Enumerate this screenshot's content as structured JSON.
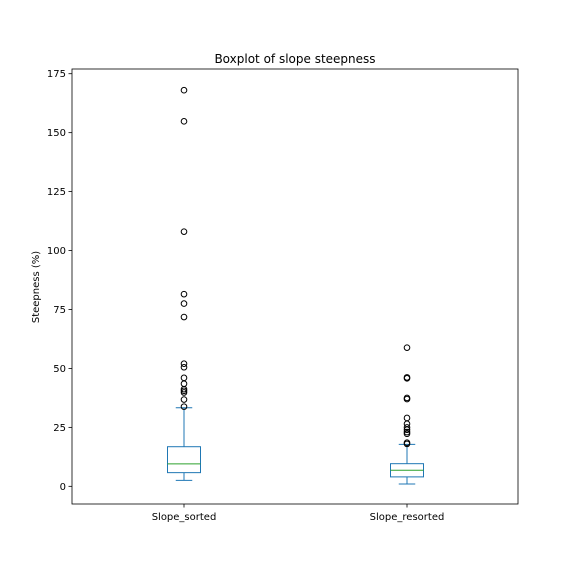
{
  "chart_data": {
    "type": "boxplot",
    "title": "Boxplot of slope steepness",
    "xlabel": "",
    "ylabel": "Steepness (%)",
    "ylim": [
      -7.5,
      177
    ],
    "yticks": [
      0,
      25,
      50,
      75,
      100,
      125,
      150,
      175
    ],
    "grid": false,
    "colors": {
      "box": "#1f77b4",
      "median": "#2ca02c",
      "flier": "#000000"
    },
    "categories": [
      "Slope_sorted",
      "Slope_resorted"
    ],
    "boxes": [
      {
        "whisker_low": 2.5,
        "q1": 5.8,
        "median": 9.5,
        "q3": 16.8,
        "whisker_high": 33.3,
        "outliers": [
          33.8,
          36.8,
          39.8,
          40.5,
          41.2,
          43.5,
          46.0,
          50.5,
          52.0,
          71.8,
          77.5,
          81.5,
          108.0,
          154.8,
          168.0
        ]
      },
      {
        "whisker_low": 1.0,
        "q1": 4.0,
        "median": 6.8,
        "q3": 9.6,
        "whisker_high": 17.8,
        "outliers": [
          18.0,
          18.5,
          22.3,
          23.0,
          24.0,
          25.0,
          26.5,
          29.0,
          37.0,
          37.5,
          45.8,
          46.2,
          58.8
        ]
      }
    ]
  }
}
